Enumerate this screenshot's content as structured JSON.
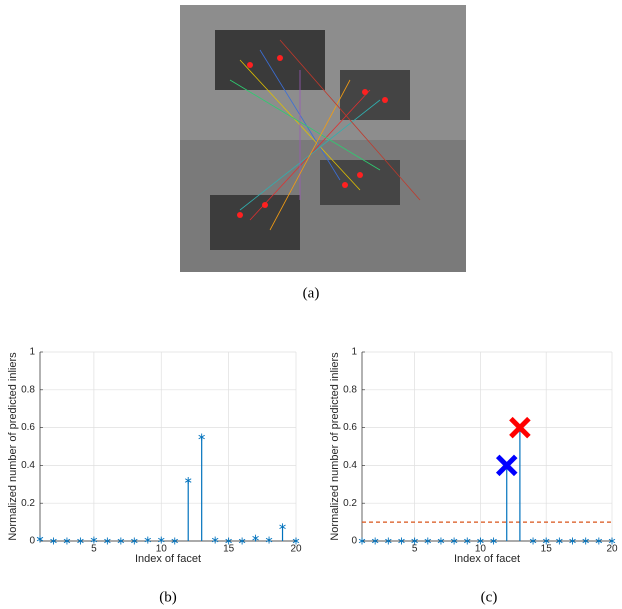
{
  "captions": [
    "(a)",
    "(b)",
    "(c)"
  ],
  "chart_data": [
    {
      "type": "stem",
      "xlabel": "Index of facet",
      "ylabel": "Normalized number of predicted inliers",
      "x": [
        1,
        2,
        3,
        4,
        5,
        6,
        7,
        8,
        9,
        10,
        11,
        12,
        13,
        14,
        15,
        16,
        17,
        18,
        19,
        20
      ],
      "series": [
        {
          "color": "#0072bd",
          "values": [
            0.01,
            0,
            0,
            0,
            0.005,
            0,
            0,
            0,
            0.005,
            0.005,
            0,
            0.32,
            0.55,
            0.005,
            0,
            0,
            0.015,
            0.005,
            0.075,
            0
          ]
        }
      ],
      "xlim": [
        1,
        20
      ],
      "xticks": [
        5,
        10,
        15,
        20
      ],
      "ylim": [
        0,
        1
      ],
      "yticks": [
        0,
        0.2,
        0.4,
        0.6,
        0.8,
        1
      ],
      "grid": true
    },
    {
      "type": "stem",
      "xlabel": "Index of facet",
      "ylabel": "Normalized number of predicted inliers",
      "x": [
        1,
        2,
        3,
        4,
        5,
        6,
        7,
        8,
        9,
        10,
        11,
        12,
        13,
        14,
        15,
        16,
        17,
        18,
        19,
        20
      ],
      "series": [
        {
          "color": "#0072bd",
          "values": [
            0,
            0,
            0,
            0,
            0,
            0,
            0,
            0,
            0,
            0,
            0,
            0.4,
            0.6,
            0,
            0,
            0,
            0,
            0,
            0,
            0
          ]
        }
      ],
      "threshold": {
        "value": 0.1,
        "color": "#d95319"
      },
      "markers": [
        {
          "x": 12,
          "y": 0.4,
          "color": "#0000ff"
        },
        {
          "x": 13,
          "y": 0.6,
          "color": "#ff0000"
        }
      ],
      "xlim": [
        1,
        20
      ],
      "xticks": [
        5,
        10,
        15,
        20
      ],
      "ylim": [
        0,
        1
      ],
      "yticks": [
        0,
        0.2,
        0.4,
        0.6,
        0.8,
        1
      ],
      "grid": true
    }
  ]
}
